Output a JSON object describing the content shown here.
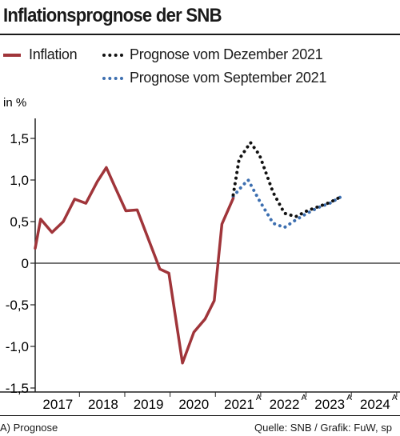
{
  "title": "Inflationsprognose der SNB",
  "footer": {
    "note": "A) Prognose",
    "source": "Quelle: SNB / Grafik: FuW, sp"
  },
  "colors": {
    "inflation": "#a0353a",
    "dec_forecast": "#111111",
    "sep_forecast": "#3d6fb0",
    "axis": "#222222"
  },
  "chart_data": {
    "type": "line",
    "title": "Inflationsprognose der SNB",
    "ylabel": "in %",
    "ylim": [
      -1.5,
      1.5
    ],
    "xlim": [
      2016.5,
      2024.55
    ],
    "y_ticks": [
      {
        "value": 1.5,
        "label": "1,5"
      },
      {
        "value": 1.0,
        "label": "1,0"
      },
      {
        "value": 0.5,
        "label": "0,5"
      },
      {
        "value": 0,
        "label": "0"
      },
      {
        "value": -0.5,
        "label": "-0,5"
      },
      {
        "value": -1.0,
        "label": "-1,0"
      },
      {
        "value": -1.5,
        "label": "-1,5"
      }
    ],
    "x_ticks": [
      {
        "value": 2017,
        "label": "2017",
        "sup": ""
      },
      {
        "value": 2018,
        "label": "2018",
        "sup": ""
      },
      {
        "value": 2019,
        "label": "2019",
        "sup": ""
      },
      {
        "value": 2020,
        "label": "2020",
        "sup": ""
      },
      {
        "value": 2021,
        "label": "2021",
        "sup": "A"
      },
      {
        "value": 2022,
        "label": "2022",
        "sup": "A"
      },
      {
        "value": 2023,
        "label": "2023",
        "sup": "A"
      },
      {
        "value": 2024,
        "label": "2024",
        "sup": "A"
      }
    ],
    "series": [
      {
        "name": "Inflation",
        "style": "solid",
        "points": [
          [
            2016.5,
            0.18
          ],
          [
            2016.62,
            0.53
          ],
          [
            2016.87,
            0.37
          ],
          [
            2017.12,
            0.5
          ],
          [
            2017.37,
            0.77
          ],
          [
            2017.62,
            0.72
          ],
          [
            2017.87,
            0.98
          ],
          [
            2018.07,
            1.15
          ],
          [
            2018.25,
            0.93
          ],
          [
            2018.5,
            0.63
          ],
          [
            2018.75,
            0.64
          ],
          [
            2019.25,
            -0.07
          ],
          [
            2019.45,
            -0.12
          ],
          [
            2019.75,
            -1.2
          ],
          [
            2020.0,
            -0.83
          ],
          [
            2020.25,
            -0.67
          ],
          [
            2020.45,
            -0.45
          ],
          [
            2020.62,
            0.47
          ],
          [
            2020.87,
            0.78
          ]
        ]
      },
      {
        "name": "Prognose vom Dezember 2021",
        "style": "dotted",
        "points": [
          [
            2020.87,
            0.82
          ],
          [
            2021.0,
            1.25
          ],
          [
            2021.25,
            1.45
          ],
          [
            2021.45,
            1.3
          ],
          [
            2021.75,
            0.85
          ],
          [
            2022.0,
            0.6
          ],
          [
            2022.25,
            0.56
          ],
          [
            2022.5,
            0.63
          ],
          [
            2022.75,
            0.68
          ],
          [
            2023.0,
            0.73
          ],
          [
            2023.25,
            0.8
          ]
        ]
      },
      {
        "name": "Prognose vom September 2021",
        "style": "dotted",
        "points": [
          [
            2020.87,
            0.8
          ],
          [
            2021.07,
            0.93
          ],
          [
            2021.2,
            1.0
          ],
          [
            2021.45,
            0.75
          ],
          [
            2021.75,
            0.48
          ],
          [
            2022.0,
            0.43
          ],
          [
            2022.25,
            0.52
          ],
          [
            2022.5,
            0.6
          ],
          [
            2022.75,
            0.67
          ],
          [
            2023.0,
            0.72
          ],
          [
            2023.25,
            0.8
          ]
        ]
      }
    ]
  }
}
